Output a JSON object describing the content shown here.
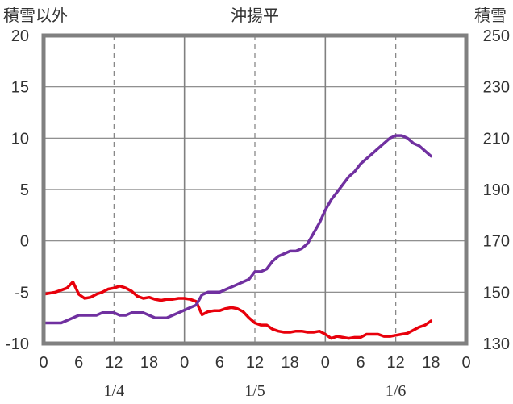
{
  "chart_data": {
    "type": "line",
    "title": "沖揚平",
    "ylabel_left": "積雪以外",
    "ylabel_right": "積雪",
    "ylim_left": [
      -10,
      20
    ],
    "ylim_right": [
      130,
      250
    ],
    "yticks_left": [
      "20",
      "15",
      "10",
      "5",
      "0",
      "-5",
      "-10"
    ],
    "yticks_right": [
      "250",
      "230",
      "210",
      "190",
      "170",
      "150",
      "130"
    ],
    "x_range_hours": [
      0,
      72
    ],
    "xticks": [
      "0",
      "6",
      "12",
      "18",
      "0",
      "6",
      "12",
      "18",
      "0",
      "6",
      "12",
      "18",
      "0"
    ],
    "dates": [
      "1/4",
      "1/5",
      "1/6"
    ],
    "grid": true,
    "series": [
      {
        "axis": "left",
        "color": "#e8000b",
        "points": [
          [
            0,
            -5.2
          ],
          [
            1,
            -5.1
          ],
          [
            2,
            -5.0
          ],
          [
            3,
            -4.8
          ],
          [
            4,
            -4.6
          ],
          [
            5,
            -4.0
          ],
          [
            6,
            -5.2
          ],
          [
            7,
            -5.6
          ],
          [
            8,
            -5.5
          ],
          [
            9,
            -5.2
          ],
          [
            10,
            -5.0
          ],
          [
            11,
            -4.7
          ],
          [
            12,
            -4.6
          ],
          [
            13,
            -4.4
          ],
          [
            14,
            -4.6
          ],
          [
            15,
            -4.9
          ],
          [
            16,
            -5.4
          ],
          [
            17,
            -5.6
          ],
          [
            18,
            -5.5
          ],
          [
            19,
            -5.7
          ],
          [
            20,
            -5.8
          ],
          [
            21,
            -5.7
          ],
          [
            22,
            -5.7
          ],
          [
            23,
            -5.6
          ],
          [
            24,
            -5.6
          ],
          [
            25,
            -5.7
          ],
          [
            26,
            -5.9
          ],
          [
            27,
            -7.2
          ],
          [
            28,
            -6.9
          ],
          [
            29,
            -6.8
          ],
          [
            30,
            -6.8
          ],
          [
            31,
            -6.6
          ],
          [
            32,
            -6.5
          ],
          [
            33,
            -6.6
          ],
          [
            34,
            -6.9
          ],
          [
            35,
            -7.5
          ],
          [
            36,
            -8.0
          ],
          [
            37,
            -8.2
          ],
          [
            38,
            -8.2
          ],
          [
            39,
            -8.6
          ],
          [
            40,
            -8.8
          ],
          [
            41,
            -8.9
          ],
          [
            42,
            -8.9
          ],
          [
            43,
            -8.8
          ],
          [
            44,
            -8.8
          ],
          [
            45,
            -8.9
          ],
          [
            46,
            -8.9
          ],
          [
            47,
            -8.8
          ],
          [
            48,
            -9.1
          ],
          [
            49,
            -9.5
          ],
          [
            50,
            -9.3
          ],
          [
            51,
            -9.4
          ],
          [
            52,
            -9.5
          ],
          [
            53,
            -9.4
          ],
          [
            54,
            -9.4
          ],
          [
            55,
            -9.1
          ],
          [
            56,
            -9.1
          ],
          [
            57,
            -9.1
          ],
          [
            58,
            -9.3
          ],
          [
            59,
            -9.3
          ],
          [
            60,
            -9.2
          ],
          [
            61,
            -9.1
          ],
          [
            62,
            -9.0
          ],
          [
            63,
            -8.7
          ],
          [
            64,
            -8.4
          ],
          [
            65,
            -8.2
          ],
          [
            66,
            -7.8
          ]
        ]
      },
      {
        "axis": "right",
        "color": "#7030a0",
        "points": [
          [
            0,
            138
          ],
          [
            1,
            138
          ],
          [
            2,
            138
          ],
          [
            3,
            138
          ],
          [
            4,
            139
          ],
          [
            5,
            140
          ],
          [
            6,
            141
          ],
          [
            7,
            141
          ],
          [
            8,
            141
          ],
          [
            9,
            141
          ],
          [
            10,
            142
          ],
          [
            11,
            142
          ],
          [
            12,
            142
          ],
          [
            13,
            141
          ],
          [
            14,
            141
          ],
          [
            15,
            142
          ],
          [
            16,
            142
          ],
          [
            17,
            142
          ],
          [
            18,
            141
          ],
          [
            19,
            140
          ],
          [
            20,
            140
          ],
          [
            21,
            140
          ],
          [
            22,
            141
          ],
          [
            23,
            142
          ],
          [
            24,
            143
          ],
          [
            25,
            144
          ],
          [
            26,
            145
          ],
          [
            27,
            149
          ],
          [
            28,
            150
          ],
          [
            29,
            150
          ],
          [
            30,
            150
          ],
          [
            31,
            151
          ],
          [
            32,
            152
          ],
          [
            33,
            153
          ],
          [
            34,
            154
          ],
          [
            35,
            155
          ],
          [
            36,
            158
          ],
          [
            37,
            158
          ],
          [
            38,
            159
          ],
          [
            39,
            162
          ],
          [
            40,
            164
          ],
          [
            41,
            165
          ],
          [
            42,
            166
          ],
          [
            43,
            166
          ],
          [
            44,
            167
          ],
          [
            45,
            169
          ],
          [
            46,
            173
          ],
          [
            47,
            177
          ],
          [
            48,
            182
          ],
          [
            49,
            186
          ],
          [
            50,
            189
          ],
          [
            51,
            192
          ],
          [
            52,
            195
          ],
          [
            53,
            197
          ],
          [
            54,
            200
          ],
          [
            55,
            202
          ],
          [
            56,
            204
          ],
          [
            57,
            206
          ],
          [
            58,
            208
          ],
          [
            59,
            210
          ],
          [
            60,
            211
          ],
          [
            61,
            211
          ],
          [
            62,
            210
          ],
          [
            63,
            208
          ],
          [
            64,
            207
          ],
          [
            65,
            205
          ],
          [
            66,
            203
          ]
        ]
      }
    ]
  }
}
